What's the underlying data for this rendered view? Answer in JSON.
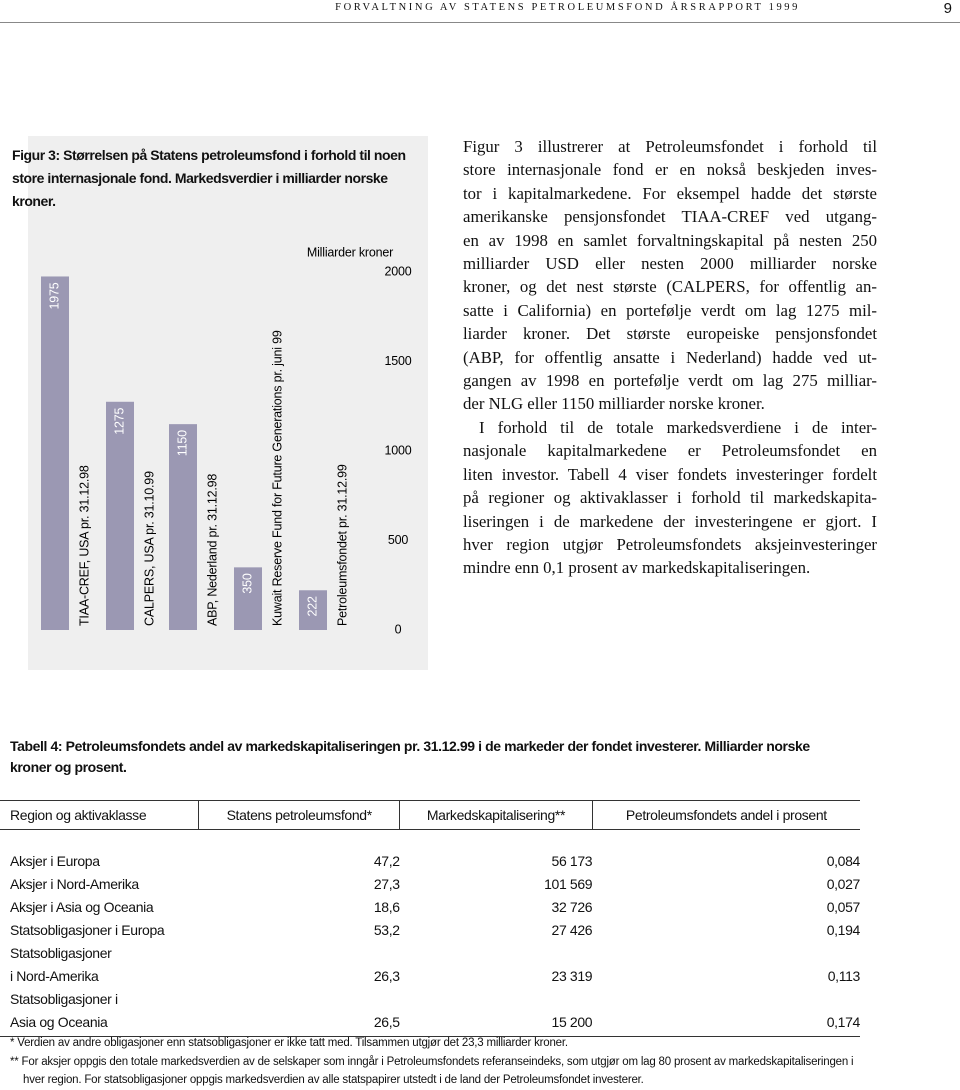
{
  "header": {
    "running_title": "FORVALTNING AV STATENS PETROLEUMSFOND ÅRSRAPPORT 1999",
    "page_number": "9"
  },
  "chart_data": {
    "type": "bar",
    "title": "Figur 3: Størrelsen på Statens petroleumsfond i forhold til noen store internasjonale fond. Markedsverdier i milliarder norske kroner.",
    "y_label": "Milliarder kroner",
    "categories": [
      "TIAA-CREF, USA pr. 31.12.98",
      "CALPERS, USA pr. 31.10.99",
      "ABP, Nederland pr. 31.12.98",
      "Kuwait Reserve Fund for Future Generations pr. juni 99",
      "Petroleumsfondet pr. 31.12.99"
    ],
    "values": [
      1975,
      1275,
      1150,
      350,
      222
    ],
    "color": "#9b98b3",
    "ylim": [
      0,
      2000
    ],
    "yticks": [
      0,
      500,
      1000,
      1500,
      2000
    ],
    "y_axis_side": "right"
  },
  "body": {
    "paragraphs": [
      [
        "Figur 3 illustrerer at Petroleumsfondet i forhold til",
        "store internasjonale fond er en nokså beskjeden inves-",
        "tor i kapitalmarkedene. For eksempel hadde det største",
        "amerikanske pensjonsfondet TIAA-CREF ved utgang-",
        "en av 1998 en samlet forvaltningskapital på nesten 250",
        "milliarder USD eller nesten 2000 milliarder norske",
        "kroner, og det nest største (CALPERS, for offentlig an-",
        "satte i California) en portefølje verdt om lag 1275 mil-",
        "liarder kroner. Det største europeiske pensjonsfondet",
        "(ABP, for offentlig ansatte i Nederland) hadde ved ut-",
        "gangen av 1998 en portefølje verdt om lag 275 milliar-",
        "der NLG eller 1150 milliarder norske kroner."
      ],
      [
        "I forhold til de totale markedsverdiene i de inter-",
        "nasjonale kapitalmarkedene er Petroleumsfondet en",
        "liten investor. Tabell 4 viser fondets investeringer fordelt",
        "på regioner og aktivaklasser i forhold til markedskapita-",
        "liseringen i de markedene der investeringene er gjort. I",
        "hver region utgjør Petroleumsfondets aksjeinvesteringer",
        "mindre enn 0,1 prosent av markedskapitaliseringen."
      ]
    ]
  },
  "table": {
    "title": "Tabell 4: Petroleumsfondets andel av markedskapitaliseringen pr. 31.12.99 i de markeder der fondet investerer. Milliarder norske kroner og prosent.",
    "columns": [
      "Region og aktivaklasse",
      "Statens petroleumsfond*",
      "Markedskapitalisering**",
      "Petroleumsfondets andel i prosent"
    ],
    "rows": [
      [
        "Aksjer i Europa",
        "47,2",
        "56 173",
        "0,084"
      ],
      [
        "Aksjer i Nord-Amerika",
        "27,3",
        "101 569",
        "0,027"
      ],
      [
        "Aksjer i Asia og Oceania",
        "18,6",
        "32 726",
        "0,057"
      ],
      [
        "Statsobligasjoner i Europa",
        "53,2",
        "27 426",
        "0,194"
      ],
      [
        "Statsobligasjoner\ni Nord-Amerika",
        "26,3",
        "23 319",
        "0,113"
      ],
      [
        "Statsobligasjoner i\nAsia og Oceania",
        "26,5",
        "15 200",
        "0,174"
      ]
    ],
    "footnotes": [
      "* Verdien av andre obligasjoner enn statsobligasjoner er ikke tatt med. Tilsammen utgjør det 23,3 milliarder kroner.",
      "** For aksjer oppgis den totale markedsverdien av de selskaper som inngår i Petroleumsfondets referanseindeks, som utgjør om lag 80 prosent av markedskapitaliseringen i hver region. For statsobligasjoner oppgis markedsverdien av alle statspapirer utstedt i de land der Petroleumsfondet investerer."
    ]
  }
}
